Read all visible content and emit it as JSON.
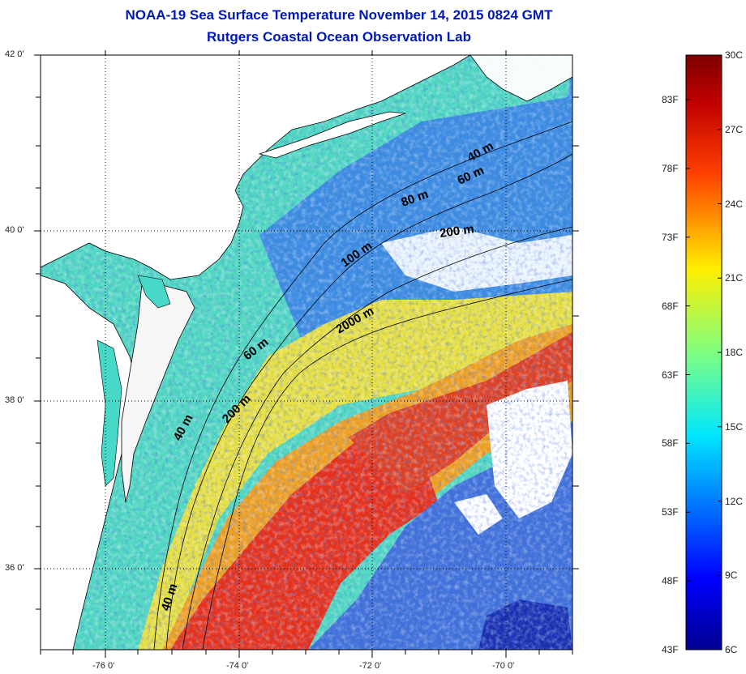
{
  "title": {
    "line1": "NOAA-19 Sea Surface Temperature November 14, 2015 0824 GMT",
    "line2": "Rutgers Coastal Ocean Observation Lab"
  },
  "map": {
    "lon_range": [
      -77.0,
      -69.0
    ],
    "lat_range": [
      35.0,
      42.0
    ],
    "lat_ticks": [
      {
        "value": 42,
        "label": "42 0'"
      },
      {
        "value": 40,
        "label": "40 0'"
      },
      {
        "value": 38,
        "label": "38 0'"
      },
      {
        "value": 36,
        "label": "36 0'"
      }
    ],
    "lon_ticks": [
      {
        "value": -76,
        "label": "-76 0'"
      },
      {
        "value": -74,
        "label": "-74 0'"
      },
      {
        "value": -72,
        "label": "-72 0'"
      },
      {
        "value": -70,
        "label": "-70 0'"
      }
    ],
    "isobath_labels": [
      "40 m",
      "60 m",
      "80 m",
      "100 m",
      "200 m",
      "2000 m",
      "200 m",
      "60 m",
      "40 m",
      "40 m"
    ],
    "colors": {
      "land": "#ffffff",
      "ocean_nearshore": "#30e0c8",
      "ocean_shelf": "#58d8c8",
      "ocean_warm": "#f0e020",
      "ocean_hot": "#e02818",
      "ocean_cold": "#1830c0",
      "grid": "#000000"
    }
  },
  "colorbar": {
    "celsius_labels": [
      "30C",
      "27C",
      "24C",
      "21C",
      "18C",
      "15C",
      "12C",
      "9C",
      "6C"
    ],
    "fahrenheit_labels": [
      "83F",
      "78F",
      "73F",
      "68F",
      "63F",
      "58F",
      "53F",
      "48F",
      "43F"
    ],
    "celsius_range": [
      6,
      30
    ]
  }
}
